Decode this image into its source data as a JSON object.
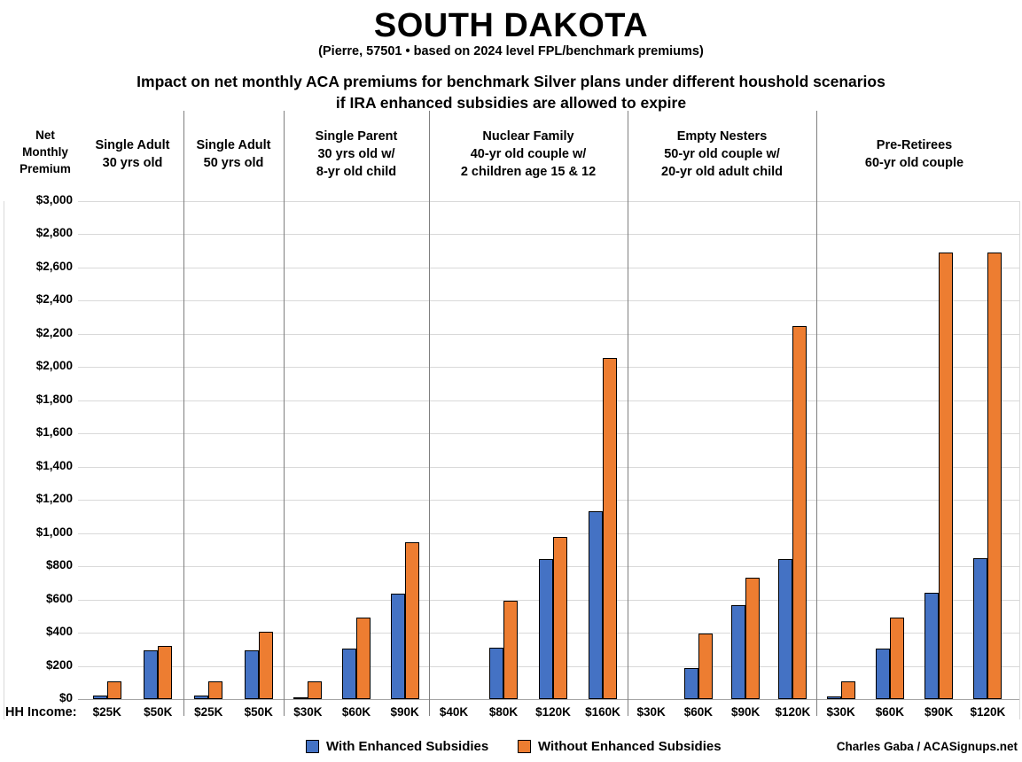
{
  "title": "SOUTH DAKOTA",
  "subtitle": "(Pierre, 57501 • based on 2024 level FPL/benchmark premiums)",
  "heading_line1": "Impact on net monthly ACA premiums for benchmark Silver plans under different houshold scenarios",
  "heading_line2": "if IRA enhanced subsidies are allowed to expire",
  "y_axis_title": {
    "line1": "Net",
    "line2": "Monthly",
    "line3": "Premium"
  },
  "hh_income_label": "HH Income:",
  "credit": "Charles Gaba / ACASignups.net",
  "colors": {
    "with_subsidies": "#4472C4",
    "without_subsidies": "#ED7D31",
    "bar_border": "#000000",
    "gridline": "#D9D9D9",
    "separator": "#7F7F7F"
  },
  "legend": [
    {
      "label": "With Enhanced Subsidies",
      "color": "#4472C4"
    },
    {
      "label": "Without Enhanced Subsidies",
      "color": "#ED7D31"
    }
  ],
  "chart_data": {
    "type": "bar",
    "title": "Impact on net monthly ACA premiums for benchmark Silver plans under different houshold scenarios if IRA enhanced subsidies are allowed to expire",
    "ylabel": "Net Monthly Premium",
    "xlabel": "HH Income",
    "ylim": [
      0,
      3000
    ],
    "ytick_step": 200,
    "ytick_format": "$#,###",
    "grid": true,
    "legend_position": "bottom",
    "series_names": [
      "With Enhanced Subsidies",
      "Without Enhanced Subsidies"
    ],
    "groups": [
      {
        "header": [
          "Single Adult",
          "30 yrs old"
        ],
        "incomes": [
          "$25K",
          "$50K"
        ],
        "with_subsidies": [
          20,
          295
        ],
        "without_subsidies": [
          105,
          320
        ]
      },
      {
        "header": [
          "Single Adult",
          "50 yrs old"
        ],
        "incomes": [
          "$25K",
          "$50K"
        ],
        "with_subsidies": [
          20,
          295
        ],
        "without_subsidies": [
          105,
          405
        ]
      },
      {
        "header": [
          "Single Parent",
          "30 yrs old w/",
          "8-yr old child"
        ],
        "incomes": [
          "$30K",
          "$60K",
          "$90K"
        ],
        "with_subsidies": [
          10,
          305,
          635
        ],
        "without_subsidies": [
          105,
          490,
          945
        ]
      },
      {
        "header": [
          "Nuclear Family",
          "40-yr old couple w/",
          "2 children age 15 & 12"
        ],
        "incomes": [
          "$40K",
          "$80K",
          "$120K",
          "$160K"
        ],
        "with_subsidies": [
          0,
          310,
          845,
          1130
        ],
        "without_subsidies": [
          0,
          590,
          975,
          2055
        ]
      },
      {
        "header": [
          "Empty Nesters",
          "50-yr old couple w/",
          "20-yr old adult child"
        ],
        "incomes": [
          "$30K",
          "$60K",
          "$90K",
          "$120K"
        ],
        "with_subsidies": [
          0,
          185,
          565,
          845
        ],
        "without_subsidies": [
          0,
          395,
          730,
          2250
        ]
      },
      {
        "header": [
          "Pre-Retirees",
          "60-yr old couple"
        ],
        "incomes": [
          "$30K",
          "$60K",
          "$90K",
          "$120K"
        ],
        "with_subsidies": [
          15,
          305,
          640,
          850
        ],
        "without_subsidies": [
          105,
          490,
          2690,
          2690
        ]
      }
    ]
  }
}
